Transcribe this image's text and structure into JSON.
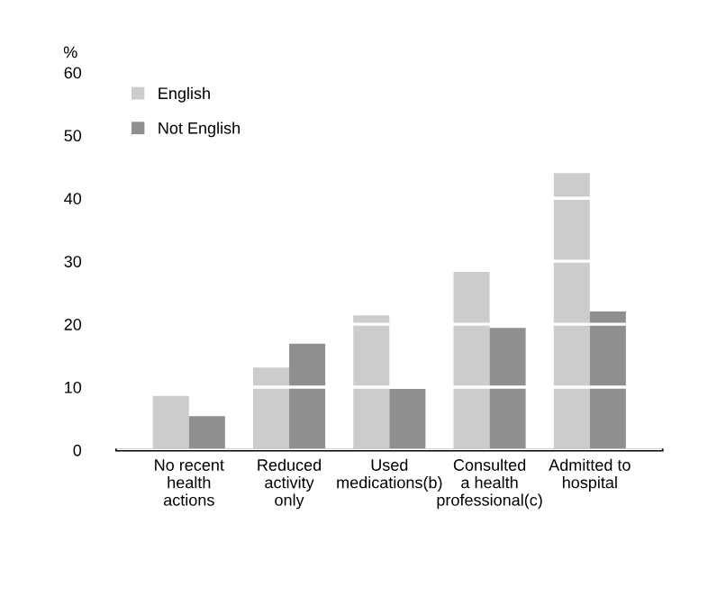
{
  "chart_data": {
    "type": "bar",
    "ylabel": "%",
    "categories": [
      "No recent\nhealth\nactions",
      "Reduced\nactivity\nonly",
      "Used\nmedications(b)",
      "Consulted\na health\nprofessional(c)",
      "Admitted to\nhospital"
    ],
    "series": [
      {
        "name": "English",
        "color": "#cccccc",
        "values": [
          8.6,
          13.1,
          21.4,
          28.3,
          44
        ]
      },
      {
        "name": "Not English",
        "color": "#8f8f8f",
        "values": [
          5.4,
          16.9,
          9.7,
          19.4,
          22
        ]
      }
    ],
    "ylim": [
      0,
      60
    ],
    "yticks": [
      0,
      10,
      20,
      30,
      40,
      50,
      60
    ],
    "grid": "y",
    "legend": "top left"
  }
}
